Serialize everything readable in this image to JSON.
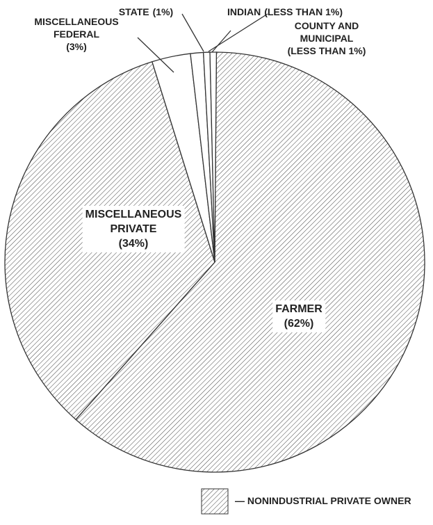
{
  "chart_data": {
    "type": "pie",
    "categories": [
      "FARMER",
      "MISCELLANEOUS\nPRIVATE",
      "MISCELLANEOUS\nFEDERAL",
      "STATE",
      "INDIAN",
      "COUNTY AND MUNICIPAL"
    ],
    "values": [
      62,
      34,
      3,
      1,
      0.5,
      0.5
    ],
    "value_labels": [
      "(62%)",
      "(34%)",
      "(3%)",
      "(1%)",
      "(LESS THAN 1%)",
      "(LESS THAN 1%)"
    ],
    "hatched": [
      true,
      true,
      false,
      false,
      false,
      false
    ],
    "legend": {
      "label": "— NONINDUSTRIAL PRIVATE OWNER"
    }
  }
}
